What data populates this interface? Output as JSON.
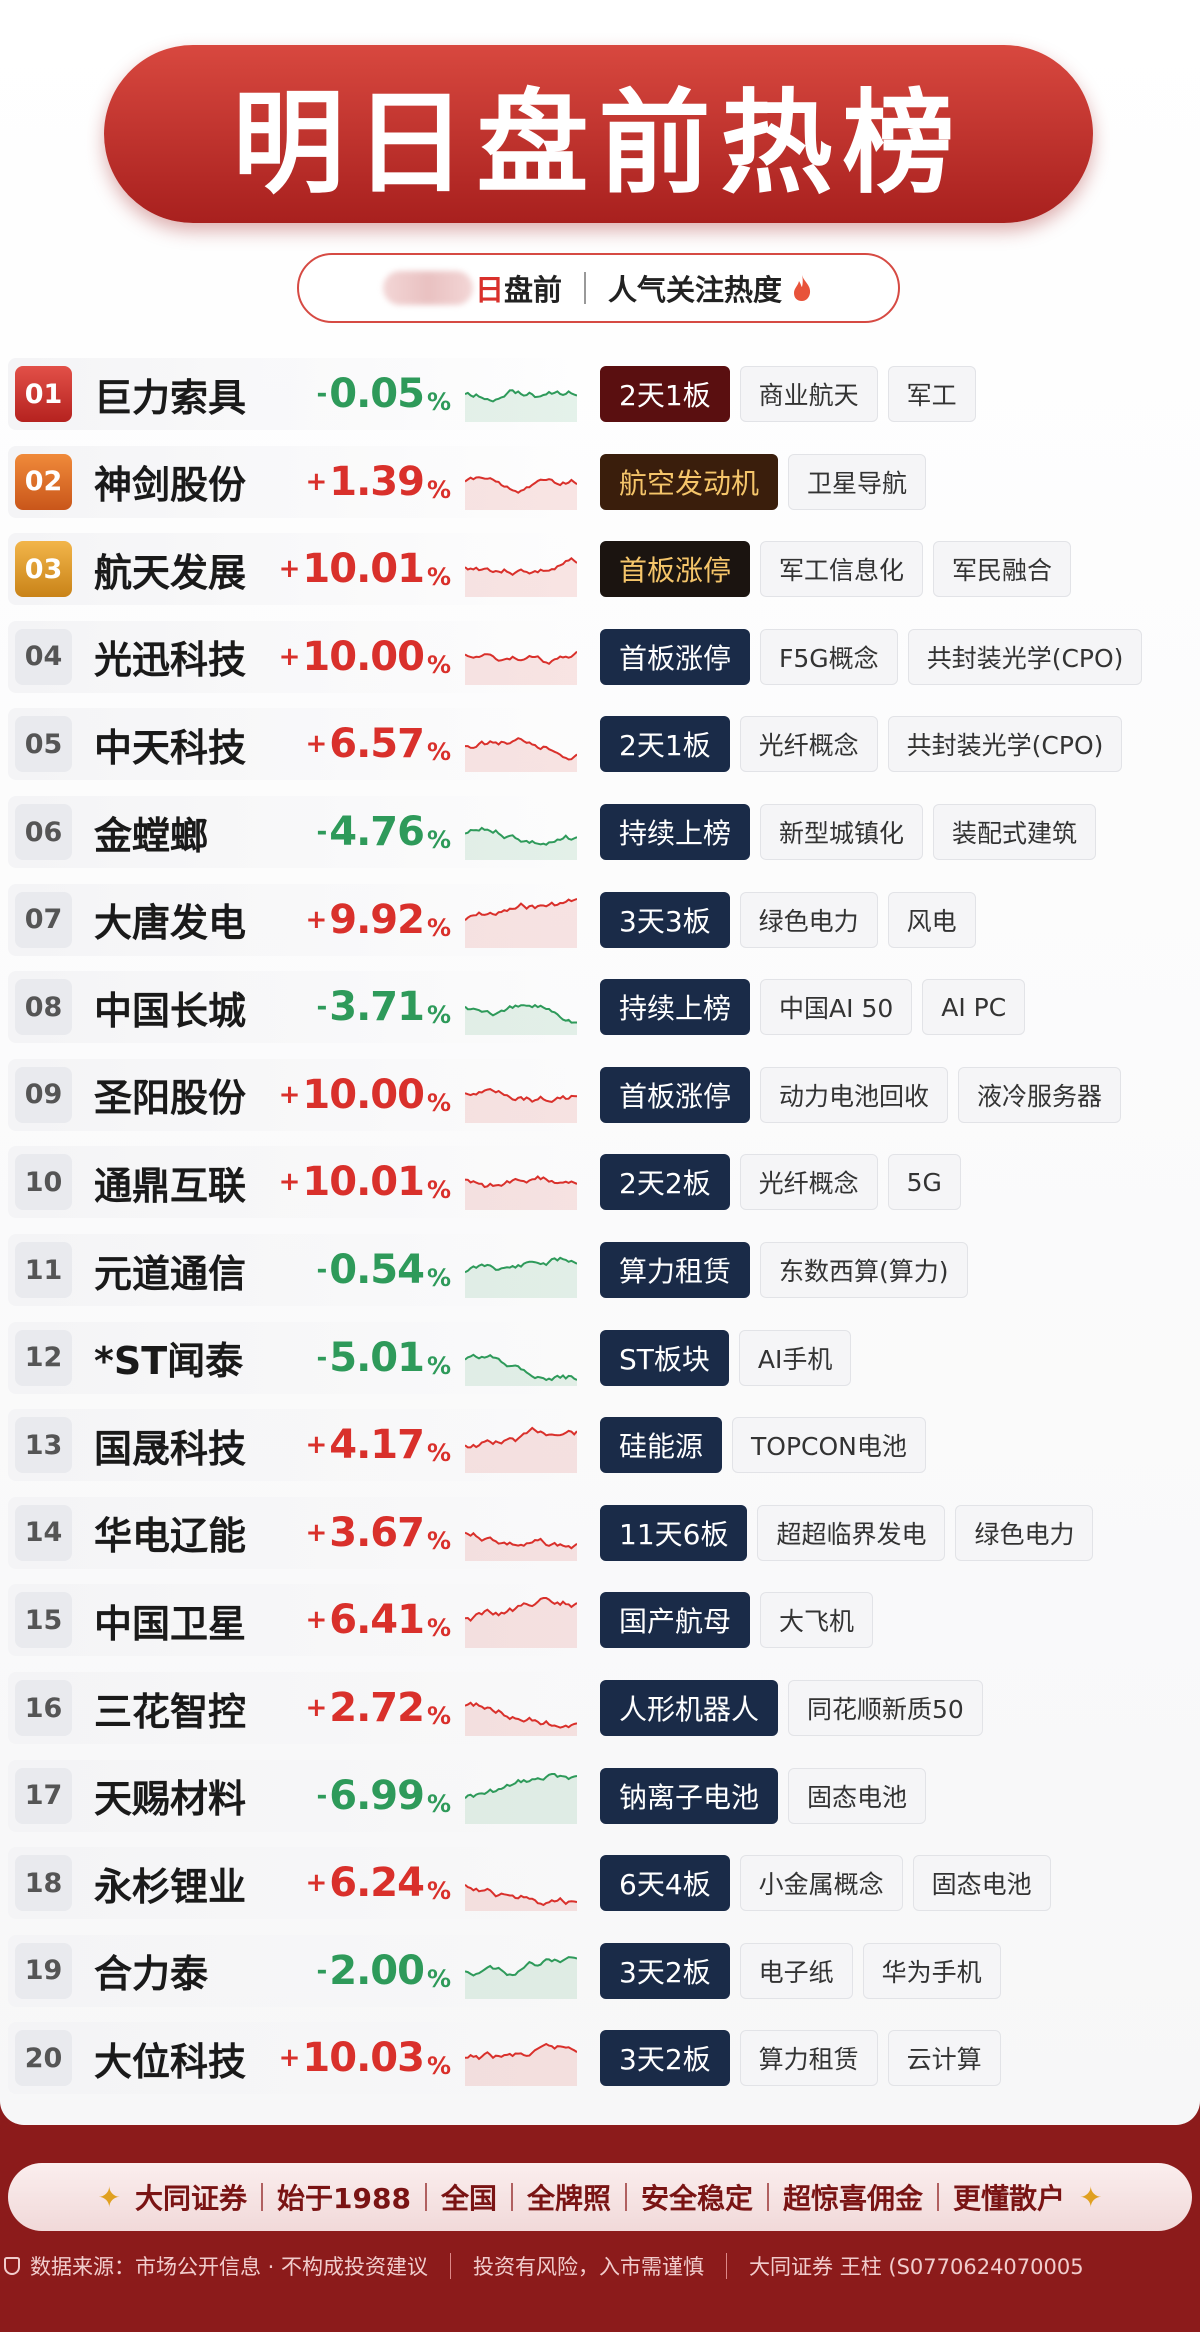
{
  "header": {
    "title": "明日盘前热榜",
    "date_suffix": "日",
    "session": "盘前",
    "tagline": "人气关注热度"
  },
  "percent_sign": "%",
  "rows": [
    {
      "rank": "01",
      "name": "巨力索具",
      "sign": "-",
      "change": "0.05",
      "color": "#2e9a5a",
      "tags": [
        "2天1板",
        "商业航天",
        "军工"
      ]
    },
    {
      "rank": "02",
      "name": "神剑股份",
      "sign": "+",
      "change": "1.39",
      "color": "#d9302b",
      "tags": [
        "航空发动机",
        "卫星导航"
      ]
    },
    {
      "rank": "03",
      "name": "航天发展",
      "sign": "+",
      "change": "10.01",
      "color": "#d9302b",
      "tags": [
        "首板涨停",
        "军工信息化",
        "军民融合"
      ]
    },
    {
      "rank": "04",
      "name": "光迅科技",
      "sign": "+",
      "change": "10.00",
      "color": "#d9302b",
      "tags": [
        "首板涨停",
        "F5G概念",
        "共封装光学(CPO)"
      ]
    },
    {
      "rank": "05",
      "name": "中天科技",
      "sign": "+",
      "change": "6.57",
      "color": "#d9302b",
      "tags": [
        "2天1板",
        "光纤概念",
        "共封装光学(CPO)"
      ]
    },
    {
      "rank": "06",
      "name": "金螳螂",
      "sign": "-",
      "change": "4.76",
      "color": "#2e9a5a",
      "tags": [
        "持续上榜",
        "新型城镇化",
        "装配式建筑"
      ]
    },
    {
      "rank": "07",
      "name": "大唐发电",
      "sign": "+",
      "change": "9.92",
      "color": "#d9302b",
      "tags": [
        "3天3板",
        "绿色电力",
        "风电"
      ]
    },
    {
      "rank": "08",
      "name": "中国长城",
      "sign": "-",
      "change": "3.71",
      "color": "#2e9a5a",
      "tags": [
        "持续上榜",
        "中国AI 50",
        "AI PC"
      ]
    },
    {
      "rank": "09",
      "name": "圣阳股份",
      "sign": "+",
      "change": "10.00",
      "color": "#d9302b",
      "tags": [
        "首板涨停",
        "动力电池回收",
        "液冷服务器"
      ]
    },
    {
      "rank": "10",
      "name": "通鼎互联",
      "sign": "+",
      "change": "10.01",
      "color": "#d9302b",
      "tags": [
        "2天2板",
        "光纤概念",
        "5G"
      ]
    },
    {
      "rank": "11",
      "name": "元道通信",
      "sign": "-",
      "change": "0.54",
      "color": "#2e9a5a",
      "tags": [
        "算力租赁",
        "东数西算(算力)"
      ]
    },
    {
      "rank": "12",
      "name": "*ST闻泰",
      "sign": "-",
      "change": "5.01",
      "color": "#2e9a5a",
      "tags": [
        "ST板块",
        "AI手机"
      ]
    },
    {
      "rank": "13",
      "name": "国晟科技",
      "sign": "+",
      "change": "4.17",
      "color": "#d9302b",
      "tags": [
        "硅能源",
        "TOPCON电池"
      ]
    },
    {
      "rank": "14",
      "name": "华电辽能",
      "sign": "+",
      "change": "3.67",
      "color": "#d9302b",
      "tags": [
        "11天6板",
        "超超临界发电",
        "绿色电力"
      ]
    },
    {
      "rank": "15",
      "name": "中国卫星",
      "sign": "+",
      "change": "6.41",
      "color": "#d9302b",
      "tags": [
        "国产航母",
        "大飞机"
      ]
    },
    {
      "rank": "16",
      "name": "三花智控",
      "sign": "+",
      "change": "2.72",
      "color": "#d9302b",
      "tags": [
        "人形机器人",
        "同花顺新质50"
      ]
    },
    {
      "rank": "17",
      "name": "天赐材料",
      "sign": "-",
      "change": "6.99",
      "color": "#2e9a5a",
      "tags": [
        "钠离子电池",
        "固态电池"
      ]
    },
    {
      "rank": "18",
      "name": "永杉锂业",
      "sign": "+",
      "change": "6.24",
      "color": "#d9302b",
      "tags": [
        "6天4板",
        "小金属概念",
        "固态电池"
      ]
    },
    {
      "rank": "19",
      "name": "合力泰",
      "sign": "-",
      "change": "2.00",
      "color": "#2e9a5a",
      "tags": [
        "3天2板",
        "电子纸",
        "华为手机"
      ]
    },
    {
      "rank": "20",
      "name": "大位科技",
      "sign": "+",
      "change": "10.03",
      "color": "#d9302b",
      "tags": [
        "3天2板",
        "算力租赁",
        "云计算"
      ]
    }
  ],
  "footer": {
    "slogan": [
      "大同证券",
      "始于1988",
      "全国",
      "全牌照",
      "安全稳定",
      "超惊喜佣金",
      "更懂散户"
    ],
    "notes": [
      "数据来源：市场公开信息 · 不构成投资建议",
      "投资有风险，入市需谨慎",
      "大同证券 王柱 (S0770624070005"
    ]
  }
}
